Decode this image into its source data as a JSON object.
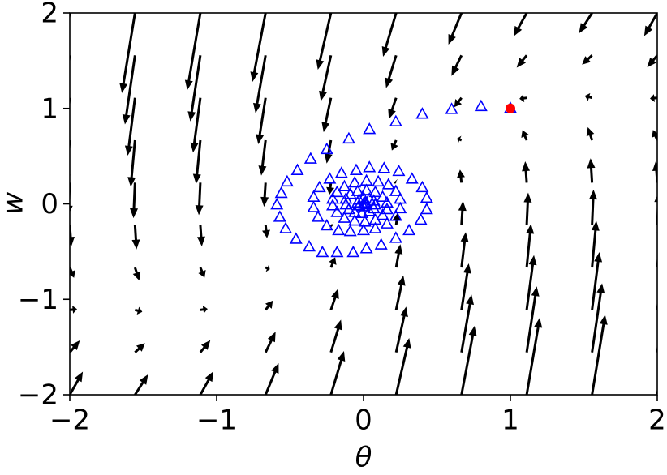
{
  "chart_data": {
    "type": "quiver",
    "xlabel": "θ",
    "ylabel": "w",
    "xlim": [
      -2,
      2
    ],
    "ylim": [
      -2,
      2
    ],
    "xticks": [
      {
        "value": -2,
        "label": "−2"
      },
      {
        "value": -1,
        "label": "−1"
      },
      0,
      1,
      2
    ],
    "yticks": [
      {
        "value": -2,
        "label": "−2"
      },
      {
        "value": -1,
        "label": "−1"
      },
      0,
      1,
      2
    ],
    "quiver": {
      "color": "#000000",
      "x": [
        -2,
        -1.556,
        -1.111,
        -0.667,
        -0.222,
        0.222,
        0.667,
        1.111,
        1.556,
        2
      ],
      "y": [
        -2,
        -1.556,
        -1.111,
        -0.667,
        -0.222,
        0.222,
        0.667,
        1.111,
        1.556,
        2
      ],
      "u": [
        [
          0.52,
          0.52,
          0.52,
          0.52,
          0.52,
          0.52,
          0.52,
          0.52,
          0.52,
          0.52
        ],
        [
          0.4,
          0.4,
          0.4,
          0.4,
          0.4,
          0.4,
          0.4,
          0.4,
          0.4,
          0.4
        ],
        [
          0.29,
          0.29,
          0.29,
          0.29,
          0.29,
          0.29,
          0.29,
          0.29,
          0.29,
          0.29
        ],
        [
          0.17,
          0.17,
          0.17,
          0.17,
          0.17,
          0.17,
          0.17,
          0.17,
          0.17,
          0.17
        ],
        [
          0.06,
          0.06,
          0.06,
          0.06,
          0.06,
          0.06,
          0.06,
          0.06,
          0.06,
          0.06
        ],
        [
          -0.06,
          -0.06,
          -0.06,
          -0.06,
          -0.06,
          -0.06,
          -0.06,
          -0.06,
          -0.06,
          -0.06
        ],
        [
          -0.17,
          -0.17,
          -0.17,
          -0.17,
          -0.17,
          -0.17,
          -0.17,
          -0.17,
          -0.17,
          -0.17
        ],
        [
          -0.29,
          -0.29,
          -0.29,
          -0.29,
          -0.29,
          -0.29,
          -0.29,
          -0.29,
          -0.29,
          -0.29
        ],
        [
          -0.4,
          -0.4,
          -0.4,
          -0.4,
          -0.4,
          -0.4,
          -0.4,
          -0.4,
          -0.4,
          -0.4
        ],
        [
          -0.52,
          -0.52,
          -0.52,
          -0.52,
          -0.52,
          -0.52,
          -0.52,
          -0.52,
          -0.52,
          -0.52
        ]
      ],
      "v": [
        [
          0.92,
          0.81,
          0.93,
          1.26,
          1.74,
          2.26,
          2.74,
          3.07,
          3.19,
          3.08
        ],
        [
          0.48,
          0.37,
          0.49,
          0.82,
          1.3,
          1.82,
          2.3,
          2.63,
          2.75,
          2.64
        ],
        [
          0.03,
          -0.08,
          0.04,
          0.37,
          0.85,
          1.37,
          1.85,
          2.18,
          2.3,
          2.19
        ],
        [
          -0.41,
          -0.52,
          -0.4,
          -0.07,
          0.41,
          0.93,
          1.41,
          1.74,
          1.86,
          1.75
        ],
        [
          -0.86,
          -0.97,
          -0.85,
          -0.52,
          -0.04,
          0.48,
          0.96,
          1.29,
          1.41,
          1.3
        ],
        [
          -1.3,
          -1.41,
          -1.29,
          -0.96,
          -0.48,
          0.04,
          0.52,
          0.85,
          0.97,
          0.86
        ],
        [
          -1.75,
          -1.86,
          -1.74,
          -1.41,
          -0.93,
          -0.41,
          0.07,
          0.4,
          0.52,
          0.41
        ],
        [
          -2.19,
          -2.3,
          -2.18,
          -1.85,
          -1.37,
          -0.85,
          -0.37,
          -0.04,
          0.08,
          -0.03
        ],
        [
          -2.64,
          -2.75,
          -2.63,
          -2.3,
          -1.82,
          -1.3,
          -0.82,
          -0.49,
          -0.37,
          -0.48
        ],
        [
          -3.08,
          -3.19,
          -3.07,
          -2.74,
          -2.26,
          -1.74,
          -1.26,
          -0.93,
          -0.81,
          -0.92
        ]
      ]
    },
    "series": [
      {
        "marker": "triangle",
        "color": "#0000ff",
        "x": [
          1,
          0.8,
          0.6,
          0.4,
          0.22,
          0.04,
          -0.1,
          -0.25,
          -0.36,
          -0.45,
          -0.52,
          -0.56,
          -0.59,
          -0.57,
          -0.53,
          -0.46,
          -0.37,
          -0.28,
          -0.18,
          -0.07,
          0.02,
          0.12,
          0.22,
          0.31,
          0.39,
          0.43,
          0.43,
          0.4,
          0.33,
          0.24,
          0.14,
          0.04,
          -0.05,
          -0.15,
          -0.23,
          -0.3,
          -0.34,
          -0.34,
          -0.31,
          -0.25,
          -0.17,
          -0.09,
          0,
          0.08,
          0.16,
          0.22,
          0.25,
          0.25,
          0.22,
          0.17,
          0.1,
          0.02,
          -0.06,
          -0.13,
          -0.18,
          -0.21,
          -0.21,
          -0.18,
          -0.13,
          -0.06,
          0.01,
          0.08,
          0.13,
          0.16,
          0.16,
          0.13,
          0.08,
          0.02,
          -0.04,
          -0.09,
          -0.12,
          -0.12,
          -0.1,
          -0.06,
          -0.01,
          0.04,
          0.07,
          0.08,
          0.07,
          0.04,
          0,
          -0.03,
          -0.04,
          -0.03,
          0,
          0.02,
          0.01,
          0
        ],
        "y": [
          1,
          1.02,
          0.99,
          0.94,
          0.86,
          0.78,
          0.68,
          0.57,
          0.47,
          0.35,
          0.23,
          0.11,
          -0.01,
          -0.14,
          -0.26,
          -0.37,
          -0.45,
          -0.51,
          -0.51,
          -0.51,
          -0.47,
          -0.43,
          -0.36,
          -0.28,
          -0.17,
          -0.06,
          0.06,
          0.17,
          0.26,
          0.34,
          0.37,
          0.38,
          0.35,
          0.32,
          0.26,
          0.17,
          0.07,
          -0.04,
          -0.14,
          -0.23,
          -0.28,
          -0.29,
          -0.28,
          -0.26,
          -0.21,
          -0.13,
          -0.05,
          0.05,
          0.13,
          0.2,
          0.23,
          0.24,
          0.22,
          0.18,
          0.12,
          0.05,
          -0.02,
          -0.09,
          -0.15,
          -0.18,
          -0.19,
          -0.17,
          -0.12,
          -0.06,
          0.01,
          0.07,
          0.12,
          0.14,
          0.13,
          0.1,
          0.05,
          -0.01,
          -0.06,
          -0.09,
          -0.1,
          -0.08,
          -0.05,
          -0.01,
          0.03,
          0.05,
          0.06,
          0.04,
          0.01,
          -0.02,
          -0.03,
          -0.01,
          0.01,
          0
        ]
      },
      {
        "marker": "circle",
        "color": "#ff0000",
        "x": [
          1
        ],
        "y": [
          1
        ]
      }
    ]
  }
}
